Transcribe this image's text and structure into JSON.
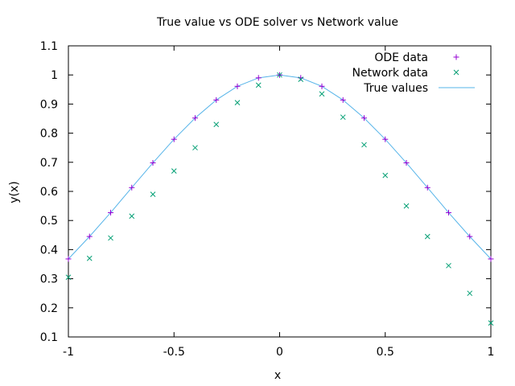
{
  "chart_data": {
    "type": "scatter",
    "title": "True value vs ODE solver vs Network value",
    "xlabel": "x",
    "ylabel": "y(x)",
    "xlim": [
      -1,
      1
    ],
    "ylim": [
      0.1,
      1.1
    ],
    "xticks": [
      -1,
      -0.5,
      0,
      0.5,
      1
    ],
    "xtick_labels": [
      "-1",
      "-0.5",
      "0",
      "0.5",
      "1"
    ],
    "yticks": [
      0.1,
      0.2,
      0.3,
      0.4,
      0.5,
      0.6,
      0.7,
      0.8,
      0.9,
      1.0,
      1.1
    ],
    "ytick_labels": [
      "0.1",
      "0.2",
      "0.3",
      "0.4",
      "0.5",
      "0.6",
      "0.7",
      "0.8",
      "0.9",
      "1",
      "1.1"
    ],
    "grid": false,
    "legend_position": "top-right",
    "series": [
      {
        "name": "ODE data",
        "marker": "plus",
        "color": "#9400d3",
        "x": [
          -1,
          -0.9,
          -0.8,
          -0.7,
          -0.6,
          -0.5,
          -0.4,
          -0.3,
          -0.2,
          -0.1,
          0,
          0.1,
          0.2,
          0.3,
          0.4,
          0.5,
          0.6,
          0.7,
          0.8,
          0.9,
          1
        ],
        "y": [
          0.368,
          0.445,
          0.527,
          0.613,
          0.698,
          0.779,
          0.852,
          0.914,
          0.961,
          0.99,
          1.0,
          0.99,
          0.961,
          0.914,
          0.852,
          0.779,
          0.698,
          0.613,
          0.527,
          0.445,
          0.368
        ]
      },
      {
        "name": "Network data",
        "marker": "cross",
        "color": "#009e73",
        "x": [
          -1,
          -0.9,
          -0.8,
          -0.7,
          -0.6,
          -0.5,
          -0.4,
          -0.3,
          -0.2,
          -0.1,
          0,
          0.1,
          0.2,
          0.3,
          0.4,
          0.5,
          0.6,
          0.7,
          0.8,
          0.9,
          1
        ],
        "y": [
          0.305,
          0.37,
          0.44,
          0.515,
          0.59,
          0.67,
          0.75,
          0.83,
          0.905,
          0.965,
          1.0,
          0.985,
          0.935,
          0.855,
          0.76,
          0.655,
          0.55,
          0.445,
          0.345,
          0.25,
          0.148
        ]
      },
      {
        "name": "True values",
        "marker": "line",
        "color": "#56b4e9",
        "x": [
          -1,
          -0.9,
          -0.8,
          -0.7,
          -0.6,
          -0.5,
          -0.4,
          -0.3,
          -0.2,
          -0.1,
          0,
          0.1,
          0.2,
          0.3,
          0.4,
          0.5,
          0.6,
          0.7,
          0.8,
          0.9,
          1
        ],
        "y": [
          0.368,
          0.445,
          0.527,
          0.613,
          0.698,
          0.779,
          0.852,
          0.914,
          0.961,
          0.99,
          1.0,
          0.99,
          0.961,
          0.914,
          0.852,
          0.779,
          0.698,
          0.613,
          0.527,
          0.445,
          0.368
        ]
      }
    ]
  }
}
